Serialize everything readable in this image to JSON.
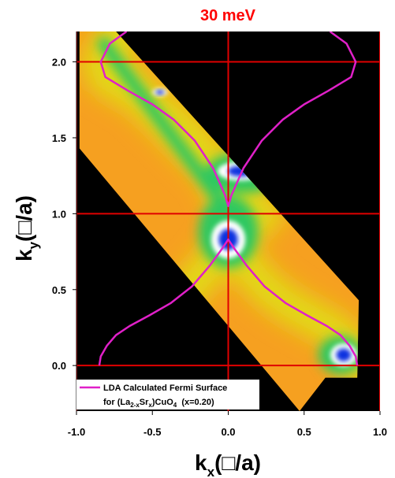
{
  "chart_data": {
    "type": "heatmap",
    "title": "30 meV",
    "xlabel": {
      "main": "k",
      "sub": "x",
      "unit": "(□/a)"
    },
    "ylabel": {
      "main": "k",
      "sub": "y",
      "unit": "(□/a)"
    },
    "xlim": [
      -1.0,
      1.0
    ],
    "ylim": [
      -0.3,
      2.2
    ],
    "x_ticks": [
      "-1.0",
      "-0.5",
      "0.0",
      "0.5",
      "1.0"
    ],
    "y_ticks": [
      "0.0",
      "0.5",
      "1.0",
      "1.5",
      "2.0"
    ],
    "x_tick_values": [
      -1.0,
      -0.5,
      0.0,
      0.5,
      1.0
    ],
    "y_tick_values": [
      0.0,
      0.5,
      1.0,
      1.5,
      2.0
    ],
    "grid_lines": {
      "x": [
        -1.0,
        0.0,
        1.0
      ],
      "y": [
        0.0,
        1.0,
        2.0
      ]
    },
    "map_region": [
      [
        -0.98,
        2.2
      ],
      [
        -0.74,
        2.2
      ],
      [
        0.86,
        0.43
      ],
      [
        0.85,
        -0.08
      ],
      [
        0.64,
        -0.08
      ],
      [
        0.47,
        -0.3
      ],
      [
        -0.98,
        1.43
      ]
    ],
    "hot_spots": [
      {
        "x": 0.0,
        "y": 0.83,
        "rx": 0.09,
        "ry": 0.1
      },
      {
        "x": 0.08,
        "y": 1.28,
        "rx": 0.12,
        "ry": 0.05
      },
      {
        "x": 0.27,
        "y": 1.37,
        "rx": 0.04,
        "ry": 0.04
      },
      {
        "x": 0.76,
        "y": 0.07,
        "rx": 0.07,
        "ry": 0.06
      },
      {
        "x": -0.45,
        "y": 1.8,
        "rx": 0.04,
        "ry": 0.02
      }
    ],
    "series": [
      {
        "name": "LDA Calculated Fermi Surface",
        "name_line2": {
          "pre": "for (La",
          "sub1": "2-x",
          "mid": "Sr",
          "sub2": "x",
          "post": ")CuO",
          "sub3": "4",
          "tail": "  (x=0.20)"
        },
        "color": "#e020c8",
        "segments": [
          {
            "x": [
              -0.85,
              -0.84,
              -0.8,
              -0.74,
              -0.65,
              -0.52,
              -0.38,
              -0.24,
              -0.12,
              -0.04,
              0.0,
              0.04,
              0.12,
              0.24,
              0.38,
              0.52,
              0.65,
              0.74,
              0.8,
              0.84,
              0.85
            ],
            "y": [
              0.0,
              0.06,
              0.13,
              0.2,
              0.26,
              0.33,
              0.41,
              0.52,
              0.66,
              0.77,
              0.83,
              0.77,
              0.66,
              0.52,
              0.41,
              0.33,
              0.26,
              0.2,
              0.13,
              0.06,
              0.0
            ]
          },
          {
            "x": [
              -0.67,
              -0.78,
              -0.84,
              -0.81,
              -0.66,
              -0.5,
              -0.36,
              -0.22,
              -0.1,
              -0.02,
              0.0,
              0.02,
              0.1,
              0.22,
              0.36,
              0.5,
              0.66,
              0.81,
              0.84,
              0.78,
              0.67
            ],
            "y": [
              2.2,
              2.12,
              2.0,
              1.9,
              1.81,
              1.72,
              1.62,
              1.48,
              1.3,
              1.12,
              1.05,
              1.12,
              1.3,
              1.48,
              1.62,
              1.72,
              1.81,
              1.9,
              2.0,
              2.12,
              2.2
            ]
          }
        ]
      }
    ],
    "legend_position": "bottom-left"
  },
  "colors": {
    "title": "#ff0000",
    "grid": "#e00000",
    "background": "#000000",
    "map_base": "#f6a020",
    "map_ridge": "#e2d818",
    "map_green": "#2ec860",
    "map_white": "#ffffff",
    "map_blue": "#1030e0"
  }
}
